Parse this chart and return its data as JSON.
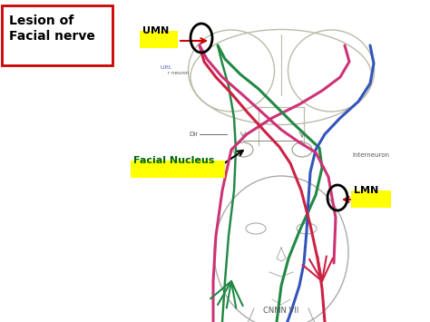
{
  "background_color": "#ffffff",
  "labels": {
    "lesion": "Lesion of\nFacial nerve",
    "umn": "UMN",
    "lmn": "LMN",
    "facial_nucleus": "Facial Nucleus",
    "interneuron": "Interneuron",
    "dir": "Dir",
    "bottom_label": "CNMN VII"
  },
  "box_color": "#cc0000",
  "nerve_colors": {
    "green": "#228844",
    "crimson": "#cc2244",
    "blue": "#3355bb",
    "pink": "#cc3377"
  },
  "figsize": [
    4.74,
    3.55
  ],
  "dpi": 100
}
